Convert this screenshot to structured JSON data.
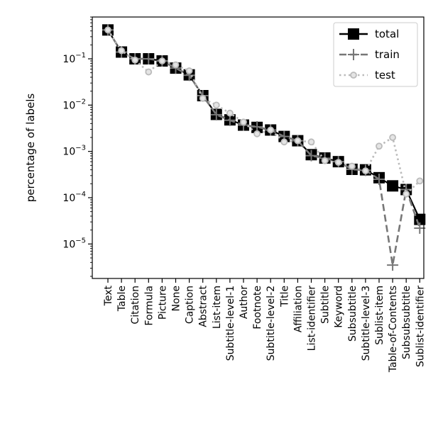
{
  "chart_data": {
    "type": "line",
    "title": "",
    "xlabel": "",
    "ylabel": "percentage of labels",
    "yscale": "log",
    "ylim": [
      1.8e-06,
      0.8
    ],
    "yticks": [
      {
        "value": 0.1,
        "base": "10",
        "exp": "−1"
      },
      {
        "value": 0.01,
        "base": "10",
        "exp": "−2"
      },
      {
        "value": 0.001,
        "base": "10",
        "exp": "−3"
      },
      {
        "value": 0.0001,
        "base": "10",
        "exp": "−4"
      },
      {
        "value": 1e-05,
        "base": "10",
        "exp": "−5"
      }
    ],
    "grid": false,
    "legend_position": "top-right",
    "categories": [
      "Text",
      "Table",
      "Citation",
      "Formula",
      "Picture",
      "None",
      "Caption",
      "Abstract",
      "List-item",
      "Subtitle-level-1",
      "Author",
      "Footnote",
      "Subtitle-level-2",
      "Title",
      "Affiliation",
      "List-identifier",
      "Subtitle",
      "Keyword",
      "Subsubtitle",
      "Subtitle-level-3",
      "Sublist-item",
      "Table-of-Contents",
      "Subsubsubtitle",
      "Sublist-identifier"
    ],
    "series": [
      {
        "name": "total",
        "color": "#000000",
        "style": "solid",
        "marker": "square",
        "values": [
          0.42,
          0.14,
          0.1,
          0.1,
          0.09,
          0.063,
          0.045,
          0.016,
          0.0063,
          0.0048,
          0.0037,
          0.0033,
          0.0029,
          0.0021,
          0.0017,
          0.00085,
          0.00072,
          0.0006,
          0.00041,
          0.0004,
          0.00027,
          0.00018,
          0.00015,
          3.4e-05
        ]
      },
      {
        "name": "train",
        "color": "#777777",
        "style": "dashed",
        "marker": "plus",
        "values": [
          0.42,
          0.14,
          0.1,
          0.1,
          0.09,
          0.063,
          0.044,
          0.016,
          0.0062,
          0.0047,
          0.0037,
          0.0034,
          0.0029,
          0.0021,
          0.0017,
          0.00081,
          0.00071,
          0.0006,
          0.00041,
          0.00039,
          0.00025,
          3.5e-06,
          0.00015,
          2.2e-05
        ]
      },
      {
        "name": "test",
        "color": "#bbbbbb",
        "style": "dotted",
        "marker": "circle",
        "values": [
          0.42,
          0.15,
          0.094,
          0.052,
          0.09,
          0.074,
          0.055,
          0.014,
          0.01,
          0.0067,
          0.0043,
          0.0024,
          0.0029,
          0.0016,
          0.0017,
          0.0016,
          0.00063,
          0.00058,
          0.00048,
          0.00038,
          0.0013,
          0.002,
          0.00012,
          0.00023
        ]
      }
    ]
  }
}
